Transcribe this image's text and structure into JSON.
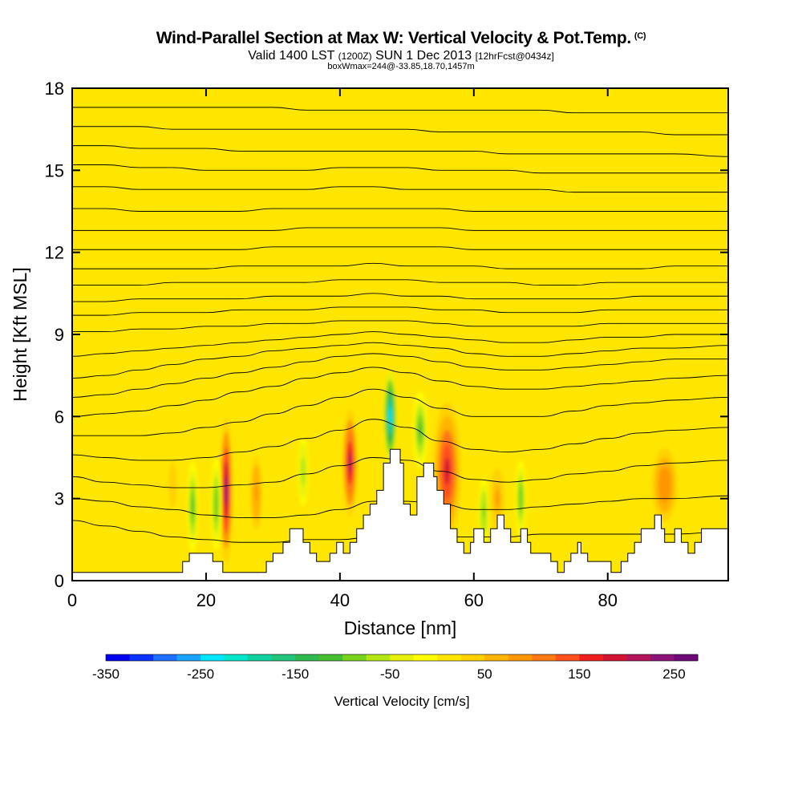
{
  "header": {
    "title": "Wind-Parallel Section at Max W: Vertical Velocity & Pot.Temp.",
    "copyright_mark": "(C)",
    "valid_prefix": "Valid 1400 LST",
    "valid_utc": "(1200Z)",
    "valid_date": "SUN 1 Dec 2013",
    "forecast_info": "[12hrFcst@0434z]",
    "box_info": "boxWmax=244@-33.85,18.70,1457m"
  },
  "chart_data": {
    "type": "heatmap",
    "xlabel": "Distance [nm]",
    "ylabel": "Height [Kft MSL]",
    "xlim": [
      0,
      98
    ],
    "ylim": [
      0,
      18
    ],
    "x_ticks": [
      0,
      20,
      40,
      60,
      80
    ],
    "y_ticks": [
      0,
      3,
      6,
      9,
      12,
      15,
      18
    ],
    "background_value_cm_s": 0,
    "colorbar": {
      "title": "Vertical Velocity [cm/s]",
      "min": -350,
      "max": 275,
      "tick_values": [
        -350,
        -250,
        -150,
        -50,
        50,
        150,
        250
      ],
      "tick_labels": [
        "-350",
        "-250",
        "-150",
        "-50",
        "50",
        "150",
        "250"
      ],
      "colors": [
        "#0000f0",
        "#0a32ff",
        "#1e6eff",
        "#19a5ff",
        "#00e6ff",
        "#00e6c8",
        "#10d2a0",
        "#22c37a",
        "#30b94e",
        "#46be32",
        "#78d21e",
        "#b4e614",
        "#e6f00a",
        "#ffff00",
        "#ffe600",
        "#ffd200",
        "#ffb400",
        "#ff9600",
        "#ff7814",
        "#ff501e",
        "#f01e1e",
        "#d21432",
        "#b4145a",
        "#8c1478",
        "#6e0a78"
      ]
    },
    "terrain_kft": [
      [
        0,
        0.3
      ],
      [
        16.5,
        0.3
      ],
      [
        16.5,
        0.7
      ],
      [
        17.5,
        0.7
      ],
      [
        17.5,
        1.0
      ],
      [
        21,
        1.0
      ],
      [
        21,
        0.7
      ],
      [
        22.5,
        0.7
      ],
      [
        22.5,
        0.3
      ],
      [
        29,
        0.3
      ],
      [
        29,
        0.7
      ],
      [
        30,
        0.7
      ],
      [
        30,
        1.0
      ],
      [
        31.5,
        1.0
      ],
      [
        31.5,
        1.4
      ],
      [
        32.5,
        1.4
      ],
      [
        32.5,
        1.9
      ],
      [
        34.5,
        1.9
      ],
      [
        34.5,
        1.4
      ],
      [
        35.5,
        1.4
      ],
      [
        35.5,
        1.0
      ],
      [
        36.5,
        1.0
      ],
      [
        36.5,
        0.7
      ],
      [
        38.5,
        0.7
      ],
      [
        38.5,
        1.0
      ],
      [
        39.5,
        1.0
      ],
      [
        39.5,
        1.4
      ],
      [
        40.5,
        1.4
      ],
      [
        40.5,
        1.0
      ],
      [
        41.5,
        1.0
      ],
      [
        41.5,
        1.4
      ],
      [
        42.5,
        1.4
      ],
      [
        42.5,
        1.9
      ],
      [
        43.5,
        1.9
      ],
      [
        43.5,
        2.4
      ],
      [
        44.5,
        2.4
      ],
      [
        44.5,
        2.8
      ],
      [
        45.5,
        2.8
      ],
      [
        45.5,
        3.3
      ],
      [
        46.5,
        3.3
      ],
      [
        46.5,
        4.3
      ],
      [
        47.5,
        4.3
      ],
      [
        47.5,
        4.8
      ],
      [
        49,
        4.8
      ],
      [
        49,
        4.3
      ],
      [
        49.5,
        4.3
      ],
      [
        49.5,
        2.8
      ],
      [
        50.5,
        2.8
      ],
      [
        50.5,
        2.4
      ],
      [
        51.5,
        2.4
      ],
      [
        51.5,
        3.8
      ],
      [
        52.5,
        3.8
      ],
      [
        52.5,
        4.3
      ],
      [
        54,
        4.3
      ],
      [
        54,
        3.8
      ],
      [
        54.5,
        3.8
      ],
      [
        54.5,
        3.3
      ],
      [
        55.5,
        3.3
      ],
      [
        55.5,
        2.8
      ],
      [
        56.5,
        2.8
      ],
      [
        56.5,
        1.9
      ],
      [
        57.5,
        1.9
      ],
      [
        57.5,
        1.4
      ],
      [
        58.5,
        1.4
      ],
      [
        58.5,
        1.0
      ],
      [
        59.5,
        1.0
      ],
      [
        59.5,
        1.4
      ],
      [
        60,
        1.4
      ],
      [
        60,
        1.9
      ],
      [
        61.5,
        1.9
      ],
      [
        61.5,
        1.4
      ],
      [
        62.5,
        1.4
      ],
      [
        62.5,
        1.9
      ],
      [
        63.5,
        1.9
      ],
      [
        63.5,
        2.4
      ],
      [
        64.5,
        2.4
      ],
      [
        64.5,
        1.9
      ],
      [
        65.5,
        1.9
      ],
      [
        65.5,
        1.4
      ],
      [
        67,
        1.4
      ],
      [
        67,
        1.9
      ],
      [
        68,
        1.9
      ],
      [
        68,
        1.4
      ],
      [
        68.5,
        1.4
      ],
      [
        68.5,
        1.0
      ],
      [
        71.5,
        1.0
      ],
      [
        71.5,
        0.7
      ],
      [
        72.5,
        0.7
      ],
      [
        72.5,
        0.3
      ],
      [
        73.5,
        0.3
      ],
      [
        73.5,
        0.7
      ],
      [
        74.5,
        0.7
      ],
      [
        74.5,
        1.0
      ],
      [
        75.5,
        1.0
      ],
      [
        75.5,
        1.4
      ],
      [
        76,
        1.4
      ],
      [
        76,
        1.0
      ],
      [
        77,
        1.0
      ],
      [
        77,
        0.7
      ],
      [
        80.5,
        0.7
      ],
      [
        80.5,
        0.3
      ],
      [
        82,
        0.3
      ],
      [
        82,
        0.7
      ],
      [
        83,
        0.7
      ],
      [
        83,
        1.0
      ],
      [
        84,
        1.0
      ],
      [
        84,
        1.4
      ],
      [
        85,
        1.4
      ],
      [
        85,
        1.9
      ],
      [
        87,
        1.9
      ],
      [
        87,
        2.4
      ],
      [
        88,
        2.4
      ],
      [
        88,
        1.9
      ],
      [
        88.5,
        1.9
      ],
      [
        88.5,
        1.4
      ],
      [
        90,
        1.4
      ],
      [
        90,
        1.9
      ],
      [
        91,
        1.9
      ],
      [
        91,
        1.4
      ],
      [
        92,
        1.4
      ],
      [
        92,
        1.0
      ],
      [
        93,
        1.0
      ],
      [
        93,
        1.4
      ],
      [
        94,
        1.4
      ],
      [
        94,
        1.9
      ],
      [
        98,
        1.9
      ]
    ],
    "vertical_velocity_cells": [
      {
        "x": 23,
        "y": 3.3,
        "sx": 0.6,
        "sy": 1.9,
        "w": 244
      },
      {
        "x": 27.5,
        "y": 3.2,
        "sx": 0.7,
        "sy": 1.2,
        "w": 90
      },
      {
        "x": 41.5,
        "y": 4.3,
        "sx": 0.7,
        "sy": 1.4,
        "w": 200
      },
      {
        "x": 47.5,
        "y": 6.0,
        "sx": 0.6,
        "sy": 1.2,
        "w": -230
      },
      {
        "x": 52,
        "y": 5.5,
        "sx": 0.7,
        "sy": 1.0,
        "w": -110
      },
      {
        "x": 56,
        "y": 4.0,
        "sx": 1.3,
        "sy": 1.8,
        "w": 180
      },
      {
        "x": 88.5,
        "y": 3.5,
        "sx": 1.5,
        "sy": 1.2,
        "w": 95
      },
      {
        "x": 18,
        "y": 2.7,
        "sx": 0.5,
        "sy": 1.2,
        "w": -120
      },
      {
        "x": 21.5,
        "y": 2.8,
        "sx": 0.5,
        "sy": 1.2,
        "w": -100
      },
      {
        "x": 34.5,
        "y": 4.0,
        "sx": 0.5,
        "sy": 0.9,
        "w": -70
      },
      {
        "x": 61.5,
        "y": 2.5,
        "sx": 0.5,
        "sy": 0.9,
        "w": -90
      },
      {
        "x": 67,
        "y": 3.0,
        "sx": 0.5,
        "sy": 1.0,
        "w": -100
      },
      {
        "x": 63.5,
        "y": 3.0,
        "sx": 0.8,
        "sy": 1.0,
        "w": 80
      },
      {
        "x": 15,
        "y": 3.5,
        "sx": 1.0,
        "sy": 1.5,
        "w": 40
      }
    ],
    "theta_isentropes_kft": [
      {
        "label": "",
        "y": [
          2.2,
          2.0,
          1.8,
          1.6,
          1.5,
          1.4,
          1.4,
          1.5,
          1.5,
          1.6,
          1.6,
          1.6,
          1.6,
          1.6,
          1.7,
          1.7,
          1.7,
          1.7,
          1.7,
          1.8
        ]
      },
      {
        "label": "",
        "y": [
          3.0,
          2.9,
          2.7,
          2.6,
          2.4,
          2.3,
          2.3,
          2.4,
          2.6,
          2.9,
          2.9,
          2.8,
          2.6,
          2.6,
          2.7,
          2.8,
          2.9,
          3.0,
          3.0,
          3.1
        ]
      },
      {
        "label": "",
        "y": [
          3.8,
          3.6,
          3.5,
          3.4,
          3.4,
          3.5,
          3.6,
          3.9,
          4.2,
          4.5,
          4.4,
          4.0,
          3.7,
          3.6,
          3.7,
          3.9,
          4.0,
          4.2,
          4.3,
          4.4
        ]
      },
      {
        "label": "",
        "y": [
          4.6,
          4.5,
          4.4,
          4.4,
          4.5,
          4.7,
          4.9,
          5.2,
          5.5,
          5.9,
          5.6,
          5.1,
          4.8,
          4.7,
          4.8,
          5.0,
          5.2,
          5.4,
          5.5,
          5.6
        ]
      },
      {
        "label": "",
        "y": [
          5.3,
          5.3,
          5.3,
          5.4,
          5.6,
          5.8,
          6.1,
          6.4,
          6.7,
          7.0,
          6.7,
          6.3,
          6.0,
          6.0,
          6.0,
          6.2,
          6.4,
          6.5,
          6.6,
          6.7
        ]
      },
      {
        "label": "",
        "y": [
          6.0,
          6.1,
          6.2,
          6.4,
          6.6,
          6.9,
          7.1,
          7.4,
          7.6,
          7.8,
          7.6,
          7.3,
          7.1,
          7.0,
          7.0,
          7.1,
          7.2,
          7.3,
          7.4,
          7.5
        ]
      },
      {
        "label": "",
        "y": [
          6.7,
          6.8,
          7.0,
          7.2,
          7.4,
          7.6,
          7.8,
          8.0,
          8.2,
          8.3,
          8.2,
          8.0,
          7.8,
          7.7,
          7.7,
          7.8,
          7.9,
          8.0,
          8.1,
          8.1
        ]
      },
      {
        "label": "",
        "y": [
          7.4,
          7.5,
          7.7,
          7.9,
          8.1,
          8.2,
          8.4,
          8.5,
          8.6,
          8.7,
          8.6,
          8.5,
          8.3,
          8.2,
          8.2,
          8.3,
          8.4,
          8.5,
          8.5,
          8.6
        ]
      },
      {
        "label": "",
        "y": [
          8.2,
          8.3,
          8.4,
          8.5,
          8.6,
          8.7,
          8.8,
          8.9,
          9.0,
          9.1,
          9.0,
          8.9,
          8.8,
          8.7,
          8.7,
          8.8,
          8.9,
          8.9,
          9.0,
          9.0
        ]
      },
      {
        "label": "",
        "y": [
          9.1,
          9.1,
          9.2,
          9.2,
          9.3,
          9.3,
          9.4,
          9.4,
          9.5,
          9.5,
          9.5,
          9.4,
          9.3,
          9.3,
          9.3,
          9.3,
          9.4,
          9.4,
          9.4,
          9.4
        ]
      },
      {
        "label": "",
        "y": [
          9.7,
          9.7,
          9.8,
          9.8,
          9.8,
          9.9,
          9.9,
          9.9,
          10.0,
          10.0,
          10.0,
          9.9,
          9.9,
          9.8,
          9.8,
          9.8,
          9.9,
          9.9,
          9.9,
          9.9
        ]
      },
      {
        "label": "",
        "y": [
          10.2,
          10.2,
          10.3,
          10.3,
          10.3,
          10.3,
          10.4,
          10.4,
          10.4,
          10.5,
          10.4,
          10.4,
          10.3,
          10.3,
          10.3,
          10.3,
          10.3,
          10.4,
          10.4,
          10.4
        ]
      },
      {
        "label": "",
        "y": [
          10.8,
          10.8,
          10.8,
          10.9,
          10.9,
          10.9,
          10.9,
          10.9,
          11.0,
          11.0,
          11.0,
          10.9,
          10.9,
          10.9,
          10.8,
          10.8,
          10.9,
          10.9,
          10.9,
          10.9
        ]
      },
      {
        "label": "",
        "y": [
          11.4,
          11.4,
          11.4,
          11.4,
          11.4,
          11.5,
          11.5,
          11.5,
          11.5,
          11.6,
          11.5,
          11.5,
          11.5,
          11.4,
          11.4,
          11.4,
          11.4,
          11.4,
          11.5,
          11.5
        ]
      },
      {
        "label": "",
        "y": [
          12.1,
          12.1,
          12.1,
          12.1,
          12.1,
          12.1,
          12.2,
          12.2,
          12.2,
          12.2,
          12.2,
          12.2,
          12.1,
          12.1,
          12.1,
          12.1,
          12.1,
          12.1,
          12.1,
          12.1
        ]
      },
      {
        "label": "",
        "y": [
          12.8,
          12.8,
          12.8,
          12.8,
          12.8,
          12.8,
          12.8,
          12.9,
          12.9,
          12.9,
          12.9,
          12.9,
          12.8,
          12.8,
          12.8,
          12.8,
          12.8,
          12.8,
          12.8,
          12.8
        ]
      },
      {
        "label": "",
        "y": [
          13.6,
          13.6,
          13.5,
          13.5,
          13.5,
          13.5,
          13.6,
          13.6,
          13.6,
          13.6,
          13.6,
          13.6,
          13.5,
          13.5,
          13.5,
          13.5,
          13.5,
          13.5,
          13.5,
          13.5
        ]
      },
      {
        "label": "",
        "y": [
          14.4,
          14.4,
          14.3,
          14.3,
          14.3,
          14.3,
          14.3,
          14.3,
          14.4,
          14.4,
          14.3,
          14.3,
          14.3,
          14.3,
          14.3,
          14.2,
          14.2,
          14.2,
          14.2,
          14.2
        ]
      },
      {
        "label": "",
        "y": [
          15.2,
          15.2,
          15.1,
          15.1,
          15.0,
          15.0,
          15.0,
          15.0,
          15.1,
          15.1,
          15.1,
          15.0,
          15.0,
          15.0,
          14.9,
          14.9,
          14.9,
          14.9,
          14.9,
          14.9
        ]
      },
      {
        "label": "",
        "y": [
          15.9,
          15.9,
          15.8,
          15.8,
          15.8,
          15.7,
          15.7,
          15.7,
          15.7,
          15.7,
          15.7,
          15.7,
          15.7,
          15.6,
          15.6,
          15.6,
          15.6,
          15.6,
          15.6,
          15.5
        ]
      },
      {
        "label": "",
        "y": [
          16.6,
          16.6,
          16.6,
          16.5,
          16.5,
          16.5,
          16.5,
          16.5,
          16.5,
          16.5,
          16.5,
          16.4,
          16.4,
          16.4,
          16.4,
          16.4,
          16.4,
          16.4,
          16.3,
          16.3
        ]
      },
      {
        "label": "",
        "y": [
          17.3,
          17.3,
          17.3,
          17.3,
          17.3,
          17.3,
          17.3,
          17.2,
          17.2,
          17.2,
          17.2,
          17.2,
          17.2,
          17.2,
          17.2,
          17.1,
          17.1,
          17.1,
          17.1,
          17.1
        ]
      }
    ],
    "isentrope_x_nm": [
      0,
      5,
      10,
      15,
      20,
      25,
      30,
      35,
      40,
      45,
      50,
      55,
      60,
      65,
      70,
      75,
      80,
      85,
      90,
      98
    ]
  }
}
